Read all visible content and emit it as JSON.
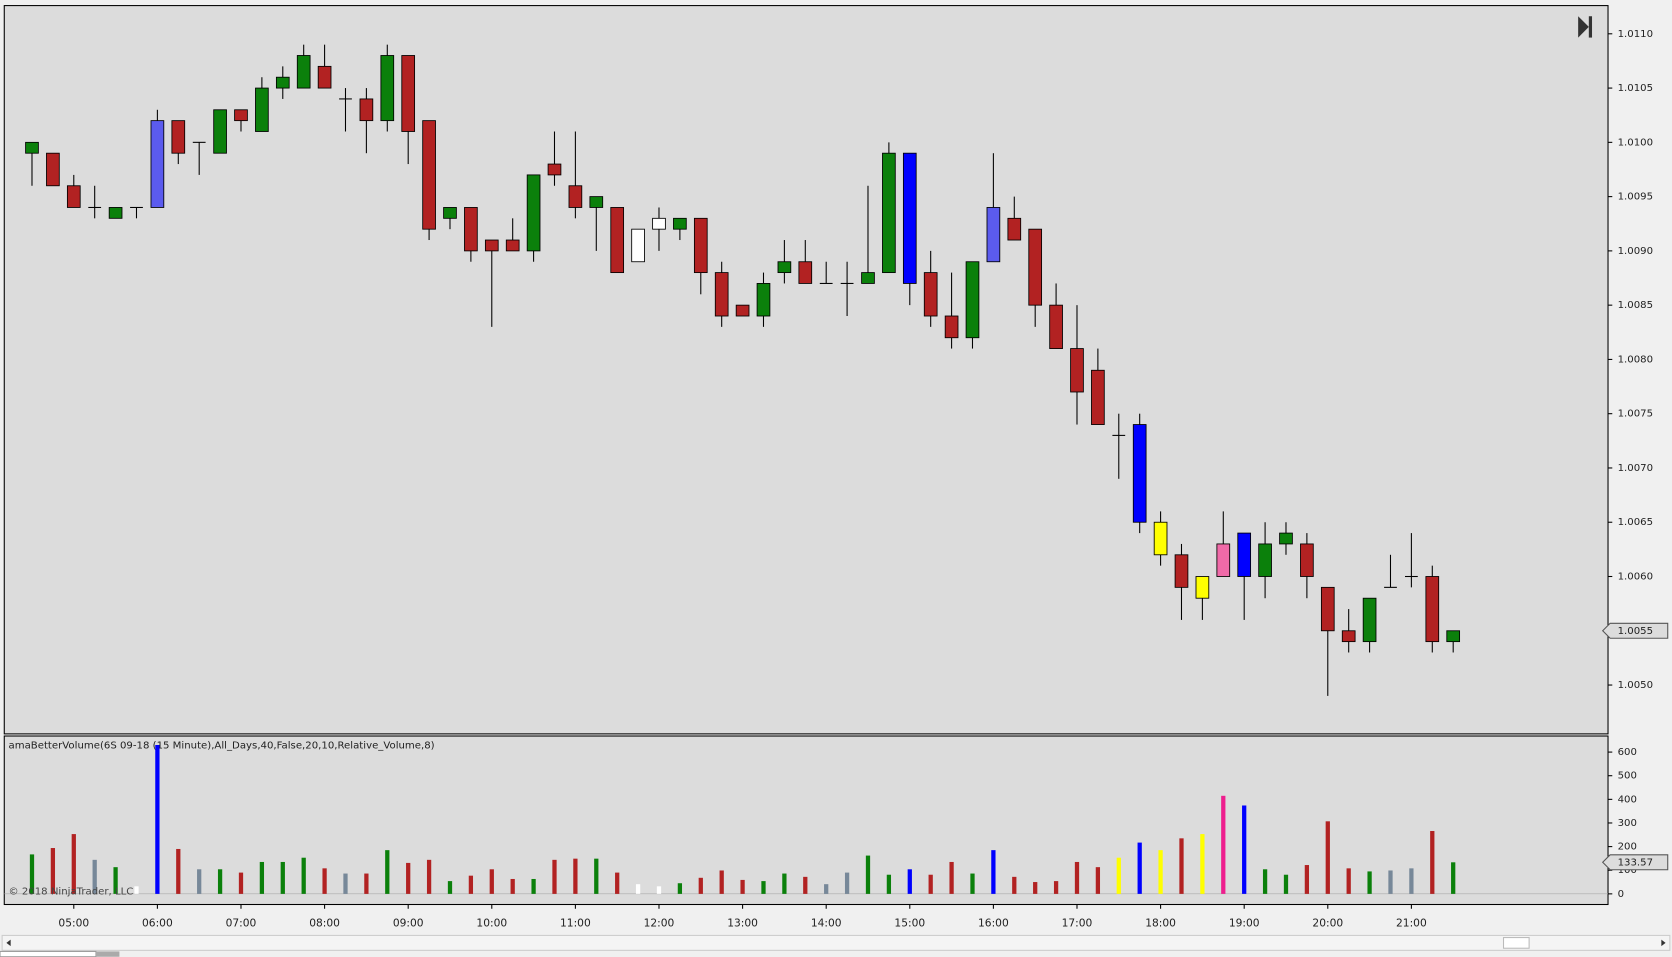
{
  "chart_data": [
    {
      "type": "candlestick",
      "open": [
        1.0099,
        1.0099,
        1.0096,
        1.0094,
        1.0093,
        1.0094,
        1.0094,
        1.0102,
        1.01,
        1.0099,
        1.0103,
        1.0101,
        1.0105,
        1.0105,
        1.0107,
        1.0104,
        1.0104,
        1.0102,
        1.0108,
        1.0102,
        1.0093,
        1.0094,
        1.0091,
        1.0091,
        1.009,
        1.0098,
        1.0096,
        1.0094,
        1.0094,
        1.0089,
        1.0092,
        1.0092,
        1.0093,
        1.0088,
        1.0085,
        1.0084,
        1.0088,
        1.0089,
        1.0087,
        1.0087,
        1.0087,
        1.0088,
        1.0099,
        1.0088,
        1.0084,
        1.0082,
        1.0089,
        1.0093,
        1.0092,
        1.0085,
        1.0081,
        1.0079,
        1.0073,
        1.0074,
        1.0065,
        1.0062,
        1.0058,
        1.006,
        1.0064,
        1.006,
        1.0063,
        1.0063,
        1.0059,
        1.0055,
        1.0054,
        1.0059,
        1.006,
        1.006,
        1.0054
      ],
      "high": [
        1.01,
        1.0099,
        1.0097,
        1.0096,
        1.0094,
        1.0094,
        1.0103,
        1.0102,
        1.01,
        1.0103,
        1.0103,
        1.0106,
        1.0107,
        1.0109,
        1.0109,
        1.0105,
        1.0105,
        1.0109,
        1.0108,
        1.0102,
        1.0094,
        1.0094,
        1.0091,
        1.0093,
        1.0097,
        1.0101,
        1.0101,
        1.0095,
        1.0094,
        1.0092,
        1.0094,
        1.0093,
        1.0093,
        1.0089,
        1.0085,
        1.0088,
        1.0091,
        1.0091,
        1.0089,
        1.0089,
        1.0096,
        1.01,
        1.0099,
        1.009,
        1.0088,
        1.0089,
        1.0099,
        1.0095,
        1.0092,
        1.0087,
        1.0085,
        1.0081,
        1.0075,
        1.0075,
        1.0066,
        1.0063,
        1.006,
        1.0066,
        1.0064,
        1.0065,
        1.0065,
        1.0064,
        1.0059,
        1.0057,
        1.0058,
        1.0062,
        1.0064,
        1.0061,
        1.0055
      ],
      "low": [
        1.0096,
        1.0096,
        1.0094,
        1.0093,
        1.0093,
        1.0093,
        1.0094,
        1.0098,
        1.0097,
        1.0099,
        1.0101,
        1.0101,
        1.0104,
        1.0105,
        1.0105,
        1.0101,
        1.0099,
        1.0101,
        1.0098,
        1.0091,
        1.0092,
        1.0089,
        1.0083,
        1.009,
        1.0089,
        1.0096,
        1.0093,
        1.009,
        1.0088,
        1.0089,
        1.009,
        1.0091,
        1.0086,
        1.0083,
        1.0084,
        1.0083,
        1.0087,
        1.0087,
        1.0087,
        1.0084,
        1.0087,
        1.0088,
        1.0085,
        1.0083,
        1.0081,
        1.0081,
        1.0089,
        1.0091,
        1.0083,
        1.0081,
        1.0074,
        1.0074,
        1.0069,
        1.0064,
        1.0061,
        1.0056,
        1.0056,
        1.006,
        1.0056,
        1.0058,
        1.0062,
        1.0058,
        1.0049,
        1.0053,
        1.0053,
        1.0059,
        1.0059,
        1.0053,
        1.0053
      ],
      "close": [
        1.01,
        1.0096,
        1.0094,
        1.0094,
        1.0094,
        1.0094,
        1.0102,
        1.0099,
        1.01,
        1.0103,
        1.0102,
        1.0105,
        1.0106,
        1.0108,
        1.0105,
        1.0104,
        1.0102,
        1.0108,
        1.0101,
        1.0092,
        1.0094,
        1.009,
        1.009,
        1.009,
        1.0097,
        1.0097,
        1.0094,
        1.0095,
        1.0088,
        1.0092,
        1.0093,
        1.0093,
        1.0088,
        1.0084,
        1.0084,
        1.0087,
        1.0089,
        1.0087,
        1.0087,
        1.0087,
        1.0088,
        1.0099,
        1.0087,
        1.0084,
        1.0082,
        1.0089,
        1.0094,
        1.0091,
        1.0085,
        1.0081,
        1.0077,
        1.0074,
        1.0073,
        1.0065,
        1.0062,
        1.0059,
        1.006,
        1.0063,
        1.006,
        1.0063,
        1.0064,
        1.006,
        1.0055,
        1.0054,
        1.0058,
        1.0059,
        1.006,
        1.0054,
        1.0055
      ],
      "colors": [
        "#0b800b",
        "#b22222",
        "#b22222",
        "#000000",
        "#0b800b",
        "#000000",
        "#5b5bee",
        "#b22222",
        "#000000",
        "#0b800b",
        "#b22222",
        "#0b800b",
        "#0b800b",
        "#0b800b",
        "#b22222",
        "#000000",
        "#b22222",
        "#0b800b",
        "#b22222",
        "#b22222",
        "#0b800b",
        "#b22222",
        "#b22222",
        "#b22222",
        "#0b800b",
        "#b22222",
        "#b22222",
        "#0b800b",
        "#b22222",
        "#ffffff",
        "#ffffff",
        "#0b800b",
        "#b22222",
        "#b22222",
        "#b22222",
        "#0b800b",
        "#0b800b",
        "#b22222",
        "#000000",
        "#000000",
        "#0b800b",
        "#0b800b",
        "#0000ff",
        "#b22222",
        "#b22222",
        "#0b800b",
        "#5b5bee",
        "#b22222",
        "#b22222",
        "#b22222",
        "#b22222",
        "#b22222",
        "#000000",
        "#0000ff",
        "#ffff00",
        "#b22222",
        "#ffff00",
        "#f06aa8",
        "#0000ff",
        "#0b800b",
        "#0b800b",
        "#b22222",
        "#b22222",
        "#b22222",
        "#0b800b",
        "#000000",
        "#000000",
        "#b22222",
        "#0b800b"
      ],
      "ylim": [
        1.00455,
        1.01126
      ],
      "yticks": [
        {
          "value": 1.005,
          "label": "1.0050"
        },
        {
          "value": 1.0055,
          "label": "1.0055"
        },
        {
          "value": 1.006,
          "label": "1.0060"
        },
        {
          "value": 1.0065,
          "label": "1.0065"
        },
        {
          "value": 1.007,
          "label": "1.0070"
        },
        {
          "value": 1.0075,
          "label": "1.0075"
        },
        {
          "value": 1.008,
          "label": "1.0080"
        },
        {
          "value": 1.0085,
          "label": "1.0085"
        },
        {
          "value": 1.009,
          "label": "1.0090"
        },
        {
          "value": 1.0095,
          "label": "1.0095"
        },
        {
          "value": 1.01,
          "label": "1.0100"
        },
        {
          "value": 1.0105,
          "label": "1.0105"
        },
        {
          "value": 1.011,
          "label": "1.0110"
        }
      ]
    },
    {
      "type": "bar",
      "title": "amaBetterVolume(6S 09-18 (15 Minute),All_Days,40,False,20,10,Relative_Volume,8)",
      "annotation": "© 2018 NinjaTrader, LLC",
      "categories": [
        null,
        null,
        "05:00",
        null,
        null,
        null,
        "06:00",
        null,
        null,
        null,
        "07:00",
        null,
        null,
        null,
        "08:00",
        null,
        null,
        null,
        "09:00",
        null,
        null,
        null,
        "10:00",
        null,
        null,
        null,
        "11:00",
        null,
        null,
        null,
        "12:00",
        null,
        null,
        null,
        "13:00",
        null,
        null,
        null,
        "14:00",
        null,
        null,
        null,
        "15:00",
        null,
        null,
        null,
        "16:00",
        null,
        null,
        null,
        "17:00",
        null,
        null,
        null,
        "18:00",
        null,
        null,
        null,
        "19:00",
        null,
        null,
        null,
        "20:00",
        null,
        null,
        null,
        "21:00",
        null,
        null
      ],
      "values": [
        167,
        194,
        253,
        144,
        113,
        32,
        630,
        190,
        104,
        104,
        90,
        135,
        135,
        153,
        108,
        86,
        86,
        185,
        131,
        144,
        54,
        77,
        104,
        63,
        63,
        144,
        149,
        149,
        90,
        41,
        32,
        45,
        68,
        99,
        59,
        54,
        86,
        72,
        41,
        90,
        162,
        81,
        104,
        81,
        135,
        86,
        185,
        72,
        50,
        54,
        135,
        113,
        153,
        217,
        185,
        235,
        253,
        415,
        374,
        104,
        81,
        122,
        307,
        108,
        95,
        99,
        108,
        266,
        133.57
      ],
      "colors": [
        "#0b800b",
        "#b22222",
        "#b22222",
        "#778899",
        "#0b800b",
        "#ffffff",
        "#0000ff",
        "#b22222",
        "#778899",
        "#0b800b",
        "#b22222",
        "#0b800b",
        "#0b800b",
        "#0b800b",
        "#b22222",
        "#778899",
        "#b22222",
        "#0b800b",
        "#b22222",
        "#b22222",
        "#0b800b",
        "#b22222",
        "#b22222",
        "#b22222",
        "#0b800b",
        "#b22222",
        "#b22222",
        "#0b800b",
        "#b22222",
        "#ffffff",
        "#ffffff",
        "#0b800b",
        "#b22222",
        "#b22222",
        "#b22222",
        "#0b800b",
        "#0b800b",
        "#b22222",
        "#778899",
        "#778899",
        "#0b800b",
        "#0b800b",
        "#0000ff",
        "#b22222",
        "#b22222",
        "#0b800b",
        "#0000ff",
        "#b22222",
        "#b22222",
        "#b22222",
        "#b22222",
        "#b22222",
        "#ffff00",
        "#0000ff",
        "#ffff00",
        "#b22222",
        "#ffff00",
        "#ee1f8e",
        "#0000ff",
        "#0b800b",
        "#0b800b",
        "#b22222",
        "#b22222",
        "#b22222",
        "#0b800b",
        "#778899",
        "#778899",
        "#b22222",
        "#0b800b"
      ],
      "ylim": [
        -45,
        668
      ],
      "yticks": [
        0,
        100,
        200,
        300,
        400,
        500,
        600
      ]
    }
  ]
}
